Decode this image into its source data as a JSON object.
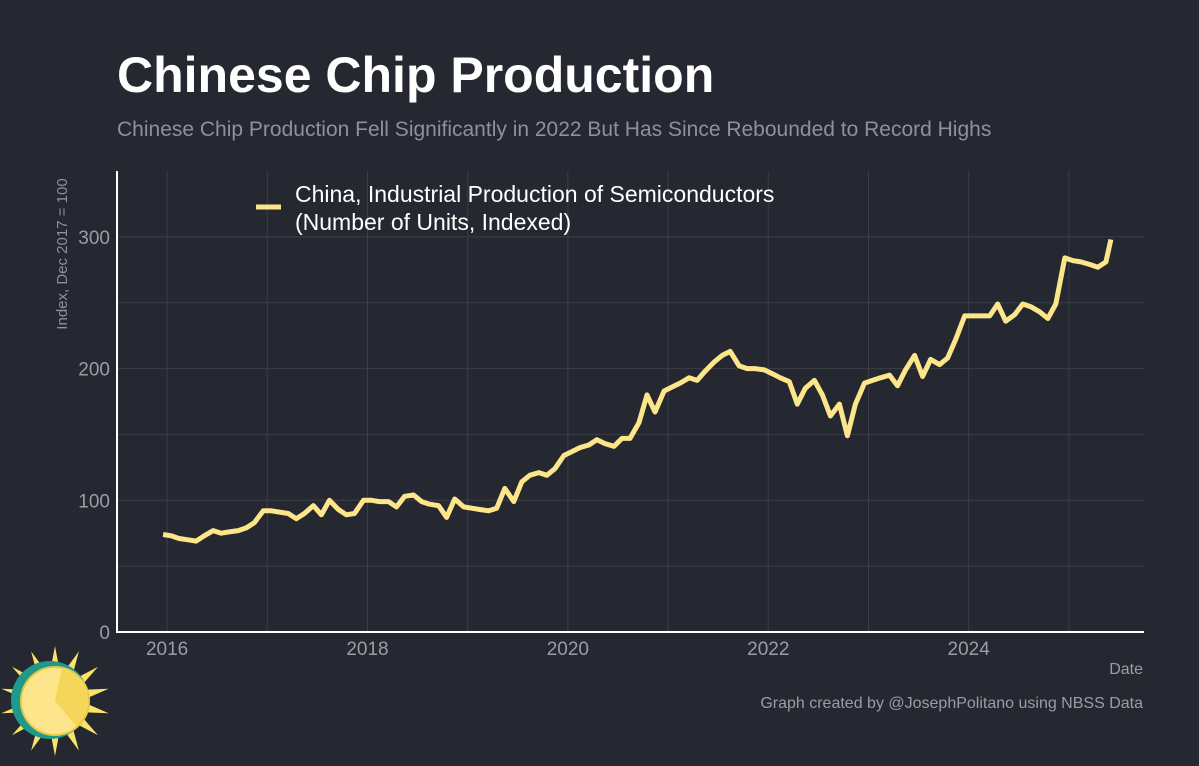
{
  "colors": {
    "background": "#252830",
    "line": "#fde68a",
    "grid": "#3b3e47",
    "axis": "#ffffff",
    "text_muted": "#9a9da6"
  },
  "chart_data": {
    "type": "line",
    "title": "Chinese Chip Production",
    "subtitle": "Chinese Chip Production Fell Significantly in 2022 But Has Since Rebounded to Record Highs",
    "xlabel": "Date",
    "ylabel": "Index, Dec 2017 = 100",
    "xlim": [
      2015.5,
      2025.75
    ],
    "ylim": [
      0,
      350
    ],
    "x_ticks": [
      2016,
      2018,
      2020,
      2022,
      2024
    ],
    "x_tick_labels": [
      "2016",
      "2018",
      "2020",
      "2022",
      "2024"
    ],
    "y_ticks": [
      0,
      100,
      200,
      300
    ],
    "y_tick_labels": [
      "0",
      "100",
      "200",
      "300"
    ],
    "grid": true,
    "legend_position": "top-left",
    "series": [
      {
        "name": "China, Industrial Production of Semiconductors (Number of Units, Indexed)",
        "legend_lines": [
          "China, Industrial Production of Semiconductors",
          "(Number of Units, Indexed)"
        ],
        "x": [
          2015.96,
          2016.04,
          2016.12,
          2016.21,
          2016.29,
          2016.37,
          2016.46,
          2016.54,
          2016.62,
          2016.71,
          2016.79,
          2016.87,
          2016.96,
          2017.04,
          2017.12,
          2017.21,
          2017.29,
          2017.37,
          2017.46,
          2017.54,
          2017.62,
          2017.71,
          2017.79,
          2017.87,
          2017.96,
          2018.04,
          2018.12,
          2018.21,
          2018.29,
          2018.37,
          2018.46,
          2018.54,
          2018.62,
          2018.71,
          2018.79,
          2018.87,
          2018.96,
          2019.04,
          2019.12,
          2019.21,
          2019.29,
          2019.37,
          2019.46,
          2019.54,
          2019.62,
          2019.71,
          2019.79,
          2019.87,
          2019.96,
          2020.04,
          2020.12,
          2020.21,
          2020.29,
          2020.37,
          2020.46,
          2020.54,
          2020.62,
          2020.71,
          2020.79,
          2020.87,
          2020.96,
          2021.04,
          2021.12,
          2021.21,
          2021.29,
          2021.37,
          2021.46,
          2021.54,
          2021.62,
          2021.71,
          2021.79,
          2021.87,
          2021.96,
          2022.04,
          2022.12,
          2022.21,
          2022.29,
          2022.37,
          2022.46,
          2022.54,
          2022.62,
          2022.71,
          2022.79,
          2022.87,
          2022.96,
          2023.04,
          2023.12,
          2023.21,
          2023.29,
          2023.37,
          2023.46,
          2023.54,
          2023.62,
          2023.71,
          2023.79,
          2023.87,
          2023.96,
          2024.04,
          2024.12,
          2024.21,
          2024.29,
          2024.37,
          2024.46,
          2024.54,
          2024.62,
          2024.71,
          2024.79,
          2024.87,
          2024.96,
          2025.04,
          2025.12,
          2025.21,
          2025.29,
          2025.37,
          2025.42
        ],
        "values": [
          74,
          73,
          71,
          70,
          69,
          73,
          77,
          75,
          76,
          77,
          79,
          83,
          92,
          92,
          91,
          90,
          86,
          90,
          96,
          89,
          100,
          93,
          89,
          90,
          100,
          100,
          99,
          99,
          95,
          103,
          104,
          99,
          97,
          96,
          87,
          101,
          95,
          94,
          93,
          92,
          94,
          109,
          99,
          114,
          119,
          121,
          119,
          124,
          134,
          137,
          140,
          142,
          146,
          143,
          141,
          147,
          147,
          159,
          180,
          167,
          183,
          186,
          189,
          193,
          191,
          198,
          205,
          210,
          213,
          202,
          200,
          200,
          199,
          196,
          193,
          190,
          173,
          185,
          191,
          180,
          164,
          173,
          149,
          173,
          189,
          191,
          193,
          195,
          187,
          199,
          210,
          194,
          207,
          203,
          208,
          222,
          240,
          240,
          240,
          240,
          249,
          236,
          241,
          249,
          247,
          243,
          238,
          249,
          284,
          282,
          281,
          279,
          277,
          281,
          298
        ]
      }
    ]
  },
  "credit": "Graph created by @JosephPolitano using NBSS Data",
  "logo": {
    "icon": "sun-logo-icon"
  }
}
